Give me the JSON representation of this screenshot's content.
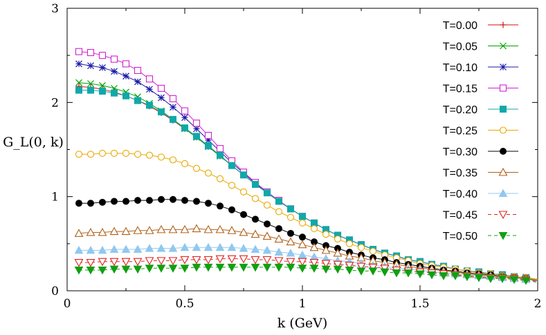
{
  "chart_data": {
    "type": "line",
    "title": "",
    "xlabel": "k (GeV)",
    "ylabel": "G_L(0, k)",
    "xlim": [
      0,
      2
    ],
    "ylim": [
      0,
      3
    ],
    "xticks": [
      "0",
      "0.5",
      "1",
      "1.5",
      "2"
    ],
    "yticks": [
      "0",
      "1",
      "2",
      "3"
    ],
    "legend_position": "top-right",
    "grid": false,
    "x": [
      0.05,
      0.1,
      0.15,
      0.2,
      0.25,
      0.3,
      0.35,
      0.4,
      0.45,
      0.5,
      0.55,
      0.6,
      0.65,
      0.7,
      0.75,
      0.8,
      0.85,
      0.9,
      0.95,
      1.0,
      1.05,
      1.1,
      1.15,
      1.2,
      1.25,
      1.3,
      1.35,
      1.4,
      1.45,
      1.5,
      1.55,
      1.6,
      1.65,
      1.7,
      1.75,
      1.8,
      1.85,
      1.9,
      1.95
    ],
    "series": [
      {
        "name": "T=0.00",
        "color": "#d01010",
        "marker": "plus",
        "dashed": false,
        "values": [
          2.17,
          2.16,
          2.14,
          2.11,
          2.07,
          2.02,
          1.96,
          1.89,
          1.81,
          1.72,
          1.63,
          1.53,
          1.43,
          1.33,
          1.23,
          1.13,
          1.04,
          0.95,
          0.87,
          0.79,
          0.72,
          0.65,
          0.59,
          0.54,
          0.49,
          0.44,
          0.4,
          0.37,
          0.33,
          0.31,
          0.28,
          0.26,
          0.23,
          0.21,
          0.2,
          0.18,
          0.17,
          0.15,
          0.14
        ]
      },
      {
        "name": "T=0.05",
        "color": "#00a000",
        "marker": "cross",
        "dashed": false,
        "values": [
          2.21,
          2.2,
          2.18,
          2.15,
          2.11,
          2.06,
          1.99,
          1.91,
          1.82,
          1.72,
          1.63,
          1.53,
          1.43,
          1.33,
          1.23,
          1.13,
          1.04,
          0.95,
          0.87,
          0.79,
          0.72,
          0.65,
          0.59,
          0.54,
          0.49,
          0.44,
          0.4,
          0.37,
          0.33,
          0.31,
          0.28,
          0.26,
          0.23,
          0.21,
          0.2,
          0.18,
          0.17,
          0.15,
          0.14
        ]
      },
      {
        "name": "T=0.10",
        "color": "#1a1aa8",
        "marker": "star",
        "dashed": false,
        "values": [
          2.41,
          2.39,
          2.37,
          2.33,
          2.28,
          2.22,
          2.14,
          2.05,
          1.95,
          1.84,
          1.72,
          1.6,
          1.48,
          1.36,
          1.25,
          1.14,
          1.04,
          0.95,
          0.87,
          0.79,
          0.72,
          0.65,
          0.59,
          0.54,
          0.49,
          0.44,
          0.4,
          0.37,
          0.33,
          0.31,
          0.28,
          0.26,
          0.23,
          0.21,
          0.2,
          0.18,
          0.17,
          0.15,
          0.14
        ]
      },
      {
        "name": "T=0.15",
        "color": "#d020d0",
        "marker": "open-square",
        "dashed": false,
        "values": [
          2.54,
          2.53,
          2.5,
          2.46,
          2.41,
          2.34,
          2.25,
          2.15,
          2.04,
          1.91,
          1.78,
          1.65,
          1.51,
          1.38,
          1.26,
          1.15,
          1.05,
          0.96,
          0.87,
          0.79,
          0.72,
          0.65,
          0.59,
          0.54,
          0.49,
          0.44,
          0.4,
          0.37,
          0.33,
          0.31,
          0.28,
          0.26,
          0.23,
          0.21,
          0.2,
          0.18,
          0.17,
          0.15,
          0.14
        ]
      },
      {
        "name": "T=0.20",
        "color": "#10a8a8",
        "marker": "filled-square",
        "dashed": false,
        "values": [
          2.13,
          2.13,
          2.12,
          2.1,
          2.07,
          2.02,
          1.97,
          1.9,
          1.82,
          1.73,
          1.64,
          1.54,
          1.44,
          1.33,
          1.23,
          1.13,
          1.04,
          0.95,
          0.87,
          0.79,
          0.72,
          0.65,
          0.59,
          0.54,
          0.49,
          0.44,
          0.4,
          0.37,
          0.33,
          0.31,
          0.28,
          0.26,
          0.23,
          0.21,
          0.2,
          0.18,
          0.17,
          0.15,
          0.14
        ]
      },
      {
        "name": "T=0.25",
        "color": "#e8a800",
        "marker": "open-circle",
        "dashed": false,
        "values": [
          1.45,
          1.45,
          1.46,
          1.46,
          1.46,
          1.45,
          1.44,
          1.42,
          1.39,
          1.35,
          1.3,
          1.25,
          1.19,
          1.12,
          1.05,
          0.98,
          0.91,
          0.84,
          0.78,
          0.72,
          0.66,
          0.6,
          0.55,
          0.5,
          0.46,
          0.42,
          0.38,
          0.35,
          0.32,
          0.29,
          0.27,
          0.25,
          0.23,
          0.21,
          0.19,
          0.18,
          0.16,
          0.15,
          0.14
        ]
      },
      {
        "name": "T=0.30",
        "color": "#000000",
        "marker": "filled-circle",
        "dashed": false,
        "values": [
          0.93,
          0.93,
          0.94,
          0.95,
          0.95,
          0.96,
          0.96,
          0.97,
          0.97,
          0.96,
          0.95,
          0.93,
          0.9,
          0.86,
          0.81,
          0.76,
          0.71,
          0.66,
          0.61,
          0.57,
          0.52,
          0.48,
          0.45,
          0.41,
          0.38,
          0.35,
          0.33,
          0.3,
          0.28,
          0.26,
          0.24,
          0.22,
          0.21,
          0.19,
          0.18,
          0.17,
          0.15,
          0.14,
          0.13
        ]
      },
      {
        "name": "T=0.35",
        "color": "#b06018",
        "marker": "open-triangle-up",
        "dashed": false,
        "values": [
          0.61,
          0.62,
          0.62,
          0.63,
          0.63,
          0.64,
          0.64,
          0.65,
          0.65,
          0.65,
          0.66,
          0.65,
          0.65,
          0.64,
          0.62,
          0.6,
          0.58,
          0.55,
          0.52,
          0.49,
          0.46,
          0.43,
          0.4,
          0.37,
          0.35,
          0.32,
          0.3,
          0.28,
          0.26,
          0.24,
          0.23,
          0.21,
          0.2,
          0.18,
          0.17,
          0.16,
          0.15,
          0.14,
          0.13
        ]
      },
      {
        "name": "T=0.40",
        "color": "#90c8f0",
        "marker": "filled-triangle-up",
        "dashed": false,
        "values": [
          0.43,
          0.43,
          0.43,
          0.44,
          0.44,
          0.44,
          0.45,
          0.45,
          0.45,
          0.46,
          0.46,
          0.46,
          0.46,
          0.46,
          0.45,
          0.44,
          0.43,
          0.41,
          0.4,
          0.38,
          0.36,
          0.34,
          0.32,
          0.31,
          0.29,
          0.27,
          0.26,
          0.24,
          0.23,
          0.22,
          0.2,
          0.19,
          0.18,
          0.17,
          0.16,
          0.15,
          0.14,
          0.13,
          0.12
        ]
      },
      {
        "name": "T=0.45",
        "color": "#e02020",
        "marker": "open-triangle-down",
        "dashed": true,
        "values": [
          0.3,
          0.3,
          0.31,
          0.31,
          0.31,
          0.31,
          0.32,
          0.32,
          0.32,
          0.33,
          0.33,
          0.33,
          0.34,
          0.34,
          0.34,
          0.33,
          0.33,
          0.32,
          0.31,
          0.31,
          0.3,
          0.29,
          0.28,
          0.27,
          0.26,
          0.25,
          0.24,
          0.22,
          0.21,
          0.2,
          0.19,
          0.18,
          0.17,
          0.16,
          0.15,
          0.14,
          0.14,
          0.13,
          0.12
        ]
      },
      {
        "name": "T=0.50",
        "color": "#10a010",
        "marker": "filled-triangle-down",
        "dashed": true,
        "values": [
          0.22,
          0.22,
          0.22,
          0.23,
          0.23,
          0.23,
          0.24,
          0.24,
          0.24,
          0.24,
          0.25,
          0.25,
          0.25,
          0.25,
          0.25,
          0.25,
          0.25,
          0.25,
          0.25,
          0.24,
          0.24,
          0.23,
          0.23,
          0.22,
          0.21,
          0.21,
          0.2,
          0.19,
          0.19,
          0.18,
          0.17,
          0.16,
          0.16,
          0.15,
          0.14,
          0.13,
          0.13,
          0.12,
          0.11
        ]
      }
    ]
  }
}
